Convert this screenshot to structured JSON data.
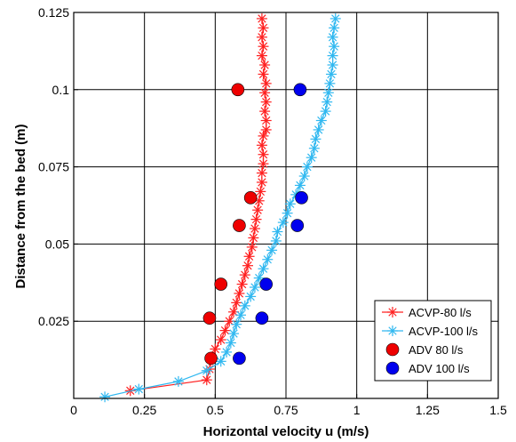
{
  "chart_data": {
    "type": "scatter",
    "xlabel": "Horizontal velocity u (m/s)",
    "ylabel": "Distance from the bed (m)",
    "xlim": [
      0,
      1.5
    ],
    "ylim": [
      0,
      0.125
    ],
    "xticks": [
      0,
      0.25,
      0.5,
      0.75,
      1,
      1.25,
      1.5
    ],
    "xtick_labels": [
      "0",
      "0.25",
      "0.5",
      "0.75",
      "1",
      "1.25",
      "1.5"
    ],
    "yticks": [
      0.025,
      0.05,
      0.075,
      0.1,
      0.125
    ],
    "ytick_labels": [
      "0.025",
      "0.05",
      "0.075",
      "0.1",
      "0.125"
    ],
    "grid": true,
    "legend_position": "bottom-right",
    "series": [
      {
        "name": "ACVP-80 l/s",
        "style": "line-star",
        "color": "#ff2020",
        "points": [
          [
            0.2,
            0.0025
          ],
          [
            0.47,
            0.006
          ],
          [
            0.48,
            0.0095
          ],
          [
            0.49,
            0.013
          ],
          [
            0.5,
            0.016
          ],
          [
            0.52,
            0.019
          ],
          [
            0.535,
            0.022
          ],
          [
            0.55,
            0.025
          ],
          [
            0.565,
            0.028
          ],
          [
            0.575,
            0.031
          ],
          [
            0.585,
            0.034
          ],
          [
            0.595,
            0.037
          ],
          [
            0.605,
            0.04
          ],
          [
            0.615,
            0.043
          ],
          [
            0.62,
            0.046
          ],
          [
            0.63,
            0.049
          ],
          [
            0.635,
            0.052
          ],
          [
            0.64,
            0.055
          ],
          [
            0.645,
            0.058
          ],
          [
            0.65,
            0.061
          ],
          [
            0.655,
            0.064
          ],
          [
            0.66,
            0.067
          ],
          [
            0.665,
            0.07
          ],
          [
            0.665,
            0.073
          ],
          [
            0.67,
            0.076
          ],
          [
            0.67,
            0.079
          ],
          [
            0.665,
            0.082
          ],
          [
            0.67,
            0.085
          ],
          [
            0.68,
            0.087
          ],
          [
            0.68,
            0.09
          ],
          [
            0.675,
            0.093
          ],
          [
            0.68,
            0.096
          ],
          [
            0.675,
            0.099
          ],
          [
            0.68,
            0.102
          ],
          [
            0.67,
            0.105
          ],
          [
            0.675,
            0.108
          ],
          [
            0.665,
            0.111
          ],
          [
            0.67,
            0.114
          ],
          [
            0.665,
            0.117
          ],
          [
            0.67,
            0.12
          ],
          [
            0.665,
            0.123
          ]
        ]
      },
      {
        "name": "ACVP-100 l/s",
        "style": "line-star",
        "color": "#30b8f0",
        "points": [
          [
            0.11,
            0.0005
          ],
          [
            0.23,
            0.003
          ],
          [
            0.37,
            0.0055
          ],
          [
            0.47,
            0.009
          ],
          [
            0.52,
            0.012
          ],
          [
            0.54,
            0.015
          ],
          [
            0.555,
            0.018
          ],
          [
            0.565,
            0.021
          ],
          [
            0.575,
            0.024
          ],
          [
            0.59,
            0.027
          ],
          [
            0.605,
            0.03
          ],
          [
            0.625,
            0.033
          ],
          [
            0.64,
            0.036
          ],
          [
            0.655,
            0.039
          ],
          [
            0.67,
            0.042
          ],
          [
            0.685,
            0.045
          ],
          [
            0.7,
            0.048
          ],
          [
            0.715,
            0.051
          ],
          [
            0.72,
            0.054
          ],
          [
            0.74,
            0.057
          ],
          [
            0.755,
            0.06
          ],
          [
            0.765,
            0.063
          ],
          [
            0.785,
            0.066
          ],
          [
            0.8,
            0.069
          ],
          [
            0.815,
            0.072
          ],
          [
            0.825,
            0.075
          ],
          [
            0.84,
            0.078
          ],
          [
            0.85,
            0.081
          ],
          [
            0.855,
            0.084
          ],
          [
            0.865,
            0.087
          ],
          [
            0.875,
            0.09
          ],
          [
            0.89,
            0.093
          ],
          [
            0.895,
            0.096
          ],
          [
            0.9,
            0.099
          ],
          [
            0.905,
            0.102
          ],
          [
            0.91,
            0.105
          ],
          [
            0.915,
            0.108
          ],
          [
            0.915,
            0.111
          ],
          [
            0.92,
            0.114
          ],
          [
            0.915,
            0.117
          ],
          [
            0.92,
            0.12
          ],
          [
            0.925,
            0.123
          ]
        ]
      },
      {
        "name": "ADV 80 l/s",
        "style": "marker-circle",
        "color": "#ee0000",
        "points": [
          [
            0.58,
            0.1
          ],
          [
            0.625,
            0.065
          ],
          [
            0.585,
            0.056
          ],
          [
            0.52,
            0.037
          ],
          [
            0.48,
            0.026
          ],
          [
            0.485,
            0.013
          ]
        ]
      },
      {
        "name": "ADV 100 l/s",
        "style": "marker-circle",
        "color": "#0000ee",
        "points": [
          [
            0.8,
            0.1
          ],
          [
            0.805,
            0.065
          ],
          [
            0.79,
            0.056
          ],
          [
            0.68,
            0.037
          ],
          [
            0.665,
            0.026
          ],
          [
            0.585,
            0.013
          ]
        ]
      }
    ]
  }
}
